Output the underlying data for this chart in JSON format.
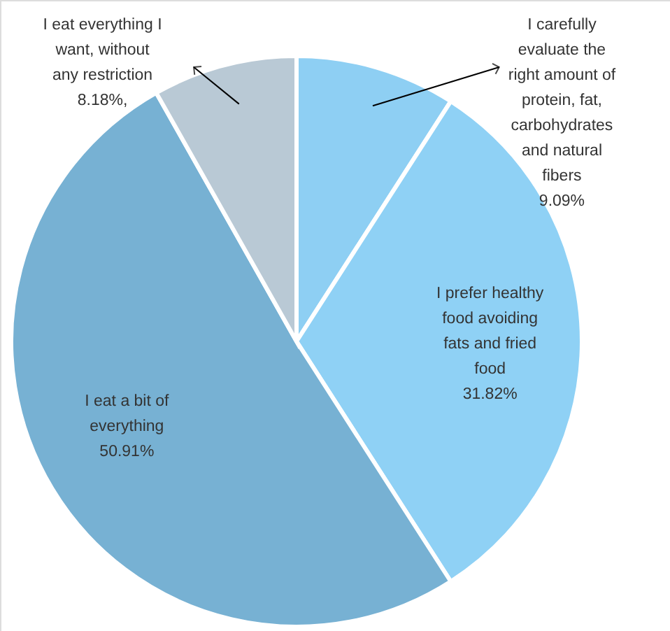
{
  "chart_data": {
    "type": "pie",
    "categories": [
      "I carefully\nevaluate the\nright amount of\nprotein, fat,\ncarbohydrates\nand natural\nfibers",
      "I prefer  healthy\nfood avoiding\nfats and fried\nfood",
      "I eat a bit of\neverything",
      "I eat everything I\nwant, without\nany restriction"
    ],
    "values": [
      9.09,
      31.82,
      50.91,
      8.18
    ],
    "colors": [
      "#8ecff3",
      "#8fd1f5",
      "#77b1d3",
      "#b9c9d5"
    ],
    "value_labels": [
      "9.09%",
      "31.82%",
      "50.91%",
      "8.18%,"
    ]
  }
}
